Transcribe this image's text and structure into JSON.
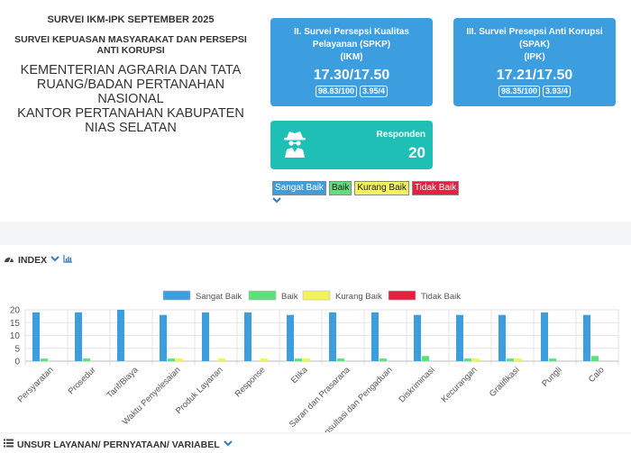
{
  "header": {
    "survey_title": "SURVEI IKM-IPK SEPTEMBER 2025",
    "survey_subtitle_lines": [
      "SURVEI KEPUASAN MASYARAKAT DAN PERSEPSI",
      "ANTI KORUPSI"
    ],
    "office_lines": [
      "KEMENTERIAN AGRARIA DAN TATA",
      "RUANG/BADAN PERTANAHAN",
      "NASIONAL",
      "KANTOR PERTANAHAN KABUPATEN",
      "NIAS SELATAN"
    ]
  },
  "cards": {
    "spkp": {
      "title_lines": [
        "II. Survei Persepsi Kualitas",
        "Pelayanan (SPKP)",
        "(IKM)"
      ],
      "score": "17.30/17.50",
      "badge1": "98.83/100",
      "badge2": "3.95/4",
      "color": "#3c9ddf"
    },
    "spak": {
      "title_lines": [
        "III. Survei Presepsi Anti Korupsi",
        "(SPAK)",
        "(IPK)"
      ],
      "score": "17.21/17.50",
      "badge1": "98.35/100",
      "badge2": "3.93/4",
      "color": "#3c9ddf"
    },
    "responden": {
      "label": "Responden",
      "count": "20",
      "icon": "spy-icon",
      "color": "#1fbfb6"
    }
  },
  "legend_buttons": [
    {
      "label": "Sangat Baik",
      "color": "#3c9ddf"
    },
    {
      "label": "Baik",
      "color": "#5de07a"
    },
    {
      "label": "Kurang Baik",
      "color": "#f2f25a"
    },
    {
      "label": "Tidak Baik",
      "color": "#e6213f"
    }
  ],
  "index_section": {
    "title": "INDEX",
    "icons": [
      "chevron-down-icon",
      "bar-chart-icon"
    ]
  },
  "unsur_section": {
    "title": "UNSUR LAYANAN/ PERNYATAAN/ VARIABEL",
    "icons": [
      "chevron-down-icon"
    ]
  },
  "chart_data": {
    "type": "bar",
    "categories": [
      "Persyaratan",
      "Prosedur",
      "Tarif/Biaya",
      "Waktu Penyelesaian",
      "Produk Layanan",
      "Response",
      "Etika",
      "Saran dan Prasarana",
      "Konsultasi dan Pengaduan",
      "Diskriminasi",
      "Kecurangan",
      "Gratifikasi",
      "Pungli",
      "Calo"
    ],
    "series": [
      {
        "name": "Sangat Baik",
        "color": "#3c9ddf",
        "values": [
          19,
          19,
          20,
          18,
          19,
          19,
          18,
          19,
          19,
          18,
          18,
          18,
          19,
          18
        ]
      },
      {
        "name": "Baik",
        "color": "#5de07a",
        "values": [
          1,
          1,
          0,
          1,
          0,
          0,
          1,
          1,
          1,
          2,
          1,
          1,
          1,
          2
        ]
      },
      {
        "name": "Kurang Baik",
        "color": "#f2f25a",
        "values": [
          0,
          0,
          0,
          1,
          1,
          1,
          1,
          0,
          0,
          0,
          1,
          1,
          0,
          0
        ]
      },
      {
        "name": "Tidak Baik",
        "color": "#e6213f",
        "values": [
          0,
          0,
          0,
          0,
          0,
          0,
          0,
          0,
          0,
          0,
          0,
          0,
          0,
          0
        ]
      }
    ],
    "ylim": [
      0,
      20
    ],
    "yticks": [
      0,
      5,
      10,
      15,
      20
    ],
    "grid": true,
    "legend_position": "top"
  }
}
